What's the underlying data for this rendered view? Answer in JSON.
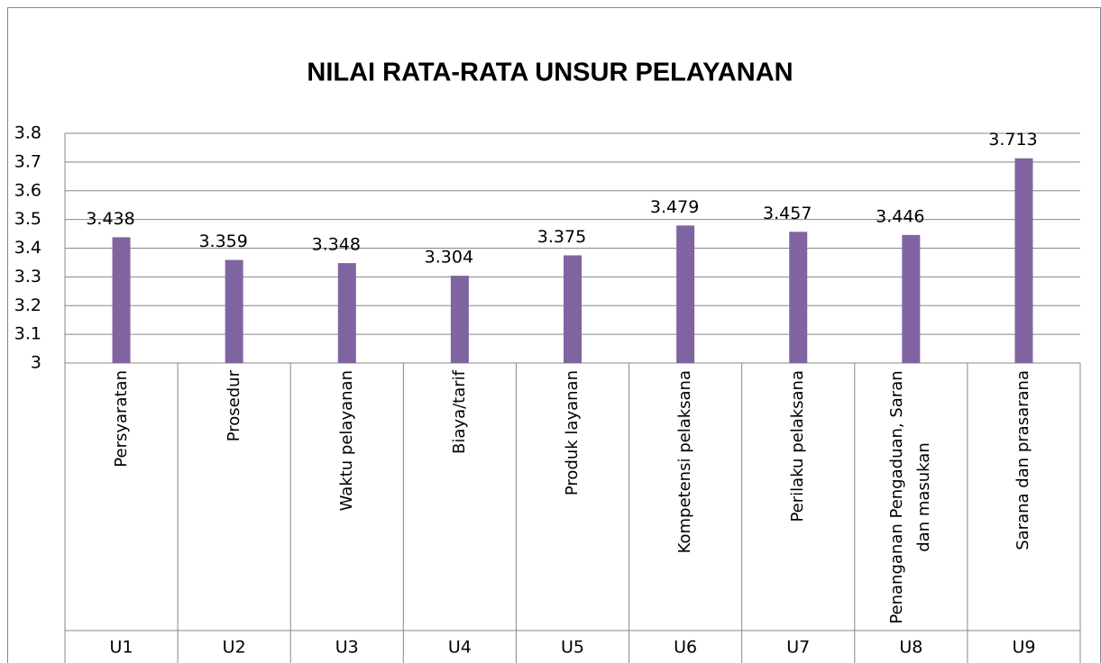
{
  "chart_data": {
    "type": "bar",
    "title": "NILAI RATA-RATA UNSUR PELAYANAN",
    "categories": [
      "Persyaratan",
      "Prosedur",
      "Waktu pelayanan",
      "Biaya/tarif",
      "Produk layanan",
      "Kompetensi pelaksana",
      "Perilaku pelaksana",
      "Penanganan Pengaduan, Saran dan masukan",
      "Sarana dan prasarana"
    ],
    "codes": [
      "U1",
      "U2",
      "U3",
      "U4",
      "U5",
      "U6",
      "U7",
      "U8",
      "U9"
    ],
    "values": [
      3.438,
      3.359,
      3.348,
      3.304,
      3.375,
      3.479,
      3.457,
      3.446,
      3.713
    ],
    "color": "#8064a2",
    "ylim": [
      3,
      3.8
    ],
    "yticks": [
      3,
      3.1,
      3.2,
      3.3,
      3.4,
      3.5,
      3.6,
      3.7,
      3.8
    ],
    "grid": true
  }
}
